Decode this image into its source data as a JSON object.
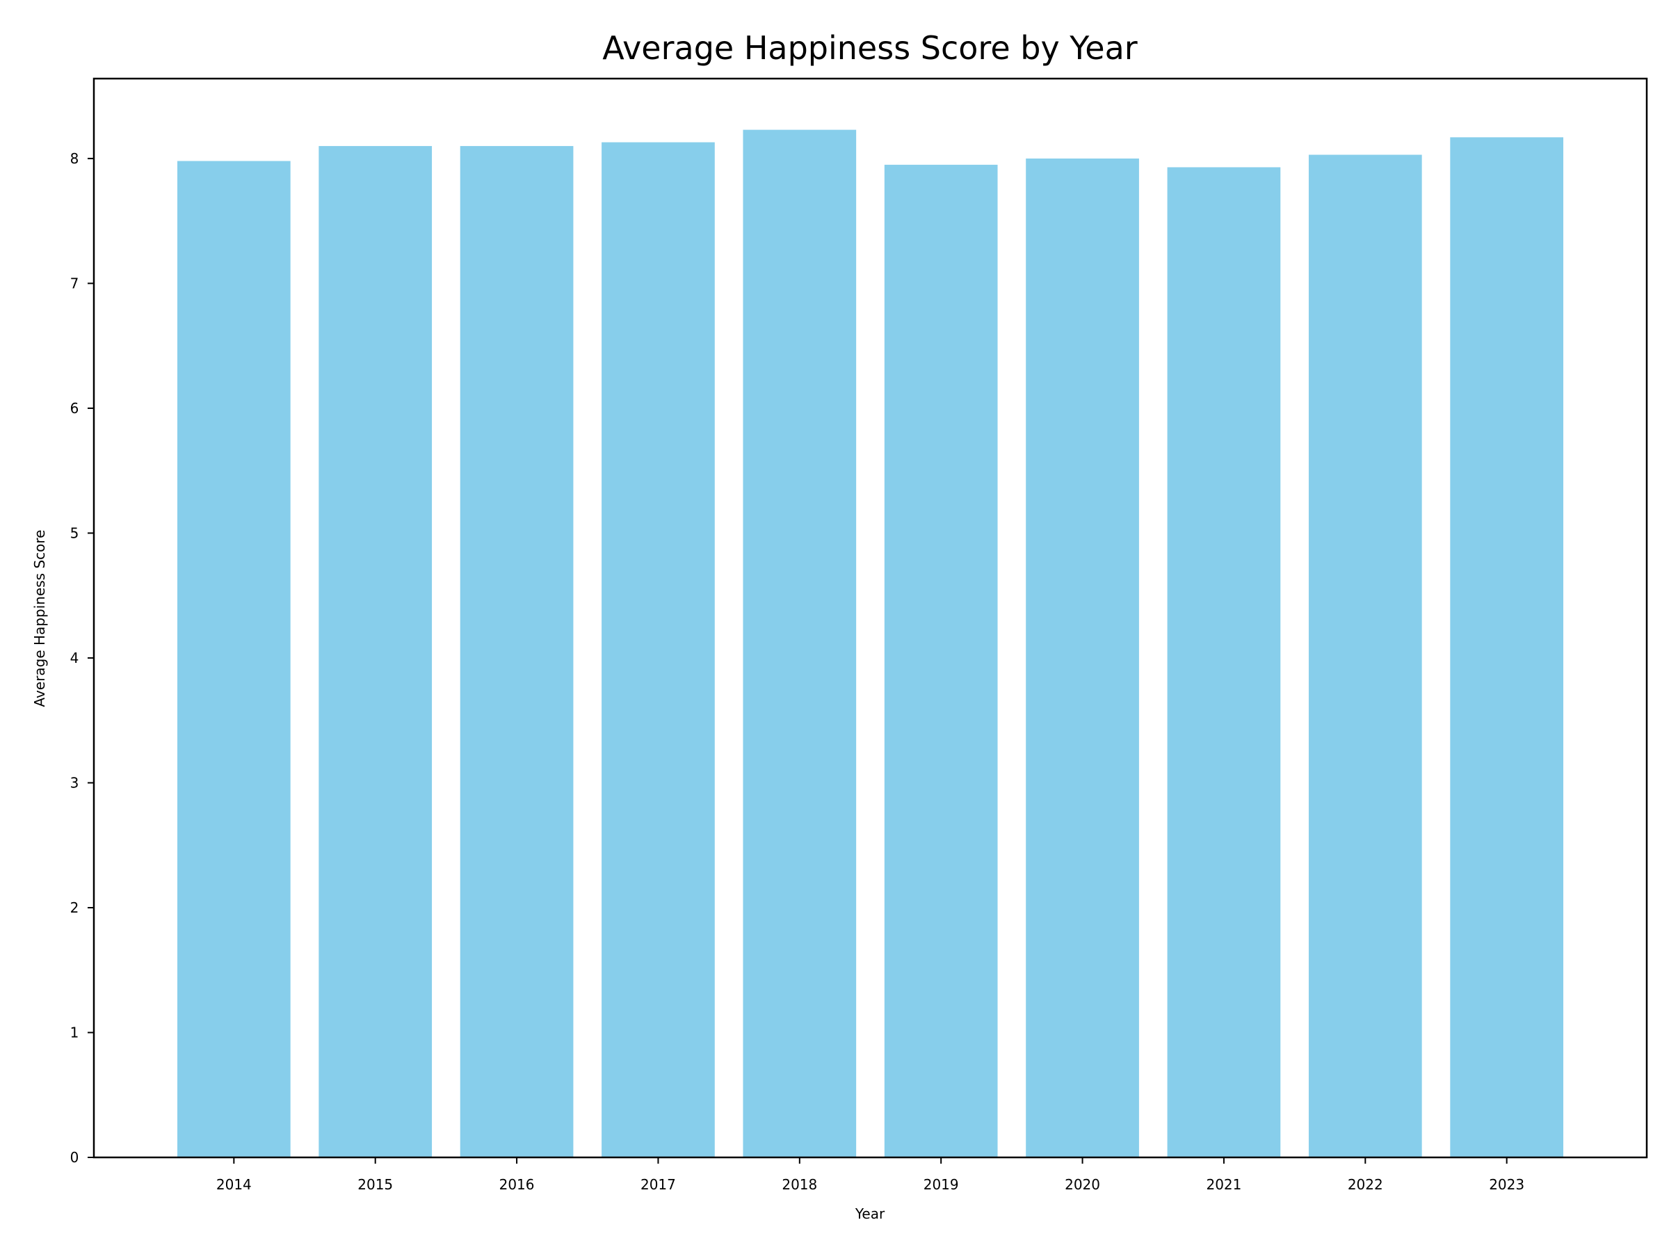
{
  "chart_data": {
    "type": "bar",
    "title": "Average Happiness Score by Year",
    "xlabel": "Year",
    "ylabel": "Average Happiness Score",
    "categories": [
      "2014",
      "2015",
      "2016",
      "2017",
      "2018",
      "2019",
      "2020",
      "2021",
      "2022",
      "2023"
    ],
    "values": [
      7.98,
      8.1,
      8.1,
      8.13,
      8.23,
      7.95,
      8.0,
      7.93,
      8.03,
      8.17
    ],
    "ylim": [
      0,
      8.64
    ],
    "yticks": [
      0,
      1,
      2,
      3,
      4,
      5,
      6,
      7,
      8
    ],
    "grid": false,
    "legend": "none",
    "bar_color": "#87CEEB",
    "axis_color": "#000000"
  }
}
